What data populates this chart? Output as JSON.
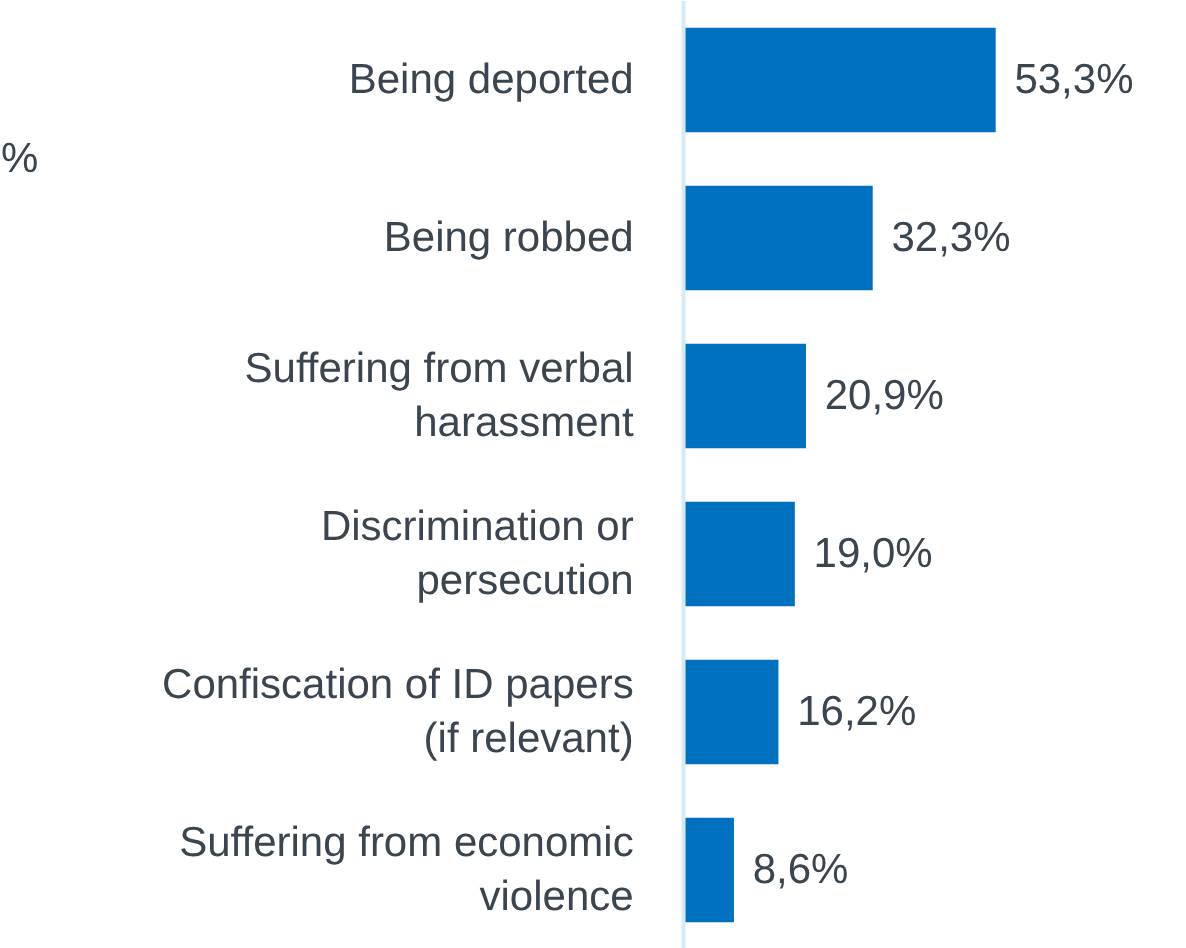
{
  "chart_data": {
    "type": "bar",
    "orientation": "horizontal",
    "categories": [
      "Being deported",
      "Being robbed",
      "Suffering from verbal harassment",
      "Discrimination or persecution",
      "Confiscation of ID papers (if relevant)",
      "Suffering from economic violence"
    ],
    "values": [
      53.3,
      32.3,
      20.9,
      19.0,
      16.2,
      8.6
    ],
    "value_labels": [
      "53,3%",
      "32,3%",
      "20,9%",
      "19,0%",
      "16,2%",
      "8,6%"
    ],
    "color": "#0070c0",
    "annotations": [
      "%"
    ]
  }
}
